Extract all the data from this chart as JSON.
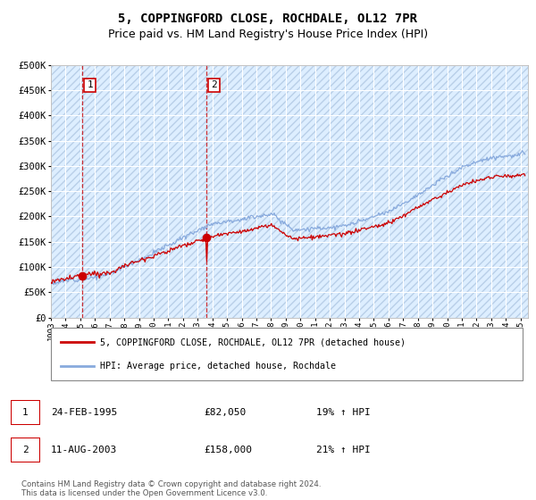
{
  "title": "5, COPPINGFORD CLOSE, ROCHDALE, OL12 7PR",
  "subtitle": "Price paid vs. HM Land Registry's House Price Index (HPI)",
  "ylim": [
    0,
    500000
  ],
  "yticks": [
    0,
    50000,
    100000,
    150000,
    200000,
    250000,
    300000,
    350000,
    400000,
    450000,
    500000
  ],
  "ytick_labels": [
    "£0",
    "£50K",
    "£100K",
    "£150K",
    "£200K",
    "£250K",
    "£300K",
    "£350K",
    "£400K",
    "£450K",
    "£500K"
  ],
  "background_color": "#ffffff",
  "plot_bg_color": "#ddeeff",
  "hatch_color": "#b8cfe8",
  "grid_color": "#ffffff",
  "sale1_date": 1995.15,
  "sale1_price": 82050,
  "sale1_label": "1",
  "sale2_date": 2003.6,
  "sale2_price": 158000,
  "sale2_label": "2",
  "sale_color": "#cc0000",
  "hpi_color": "#88aadd",
  "title_fontsize": 10,
  "subtitle_fontsize": 9,
  "xmin": 1993,
  "xmax": 2025.5,
  "legend_entry1": "5, COPPINGFORD CLOSE, ROCHDALE, OL12 7PR (detached house)",
  "legend_entry2": "HPI: Average price, detached house, Rochdale",
  "table_row1": [
    "1",
    "24-FEB-1995",
    "£82,050",
    "19% ↑ HPI"
  ],
  "table_row2": [
    "2",
    "11-AUG-2003",
    "£158,000",
    "21% ↑ HPI"
  ],
  "footer": "Contains HM Land Registry data © Crown copyright and database right 2024.\nThis data is licensed under the Open Government Licence v3.0."
}
